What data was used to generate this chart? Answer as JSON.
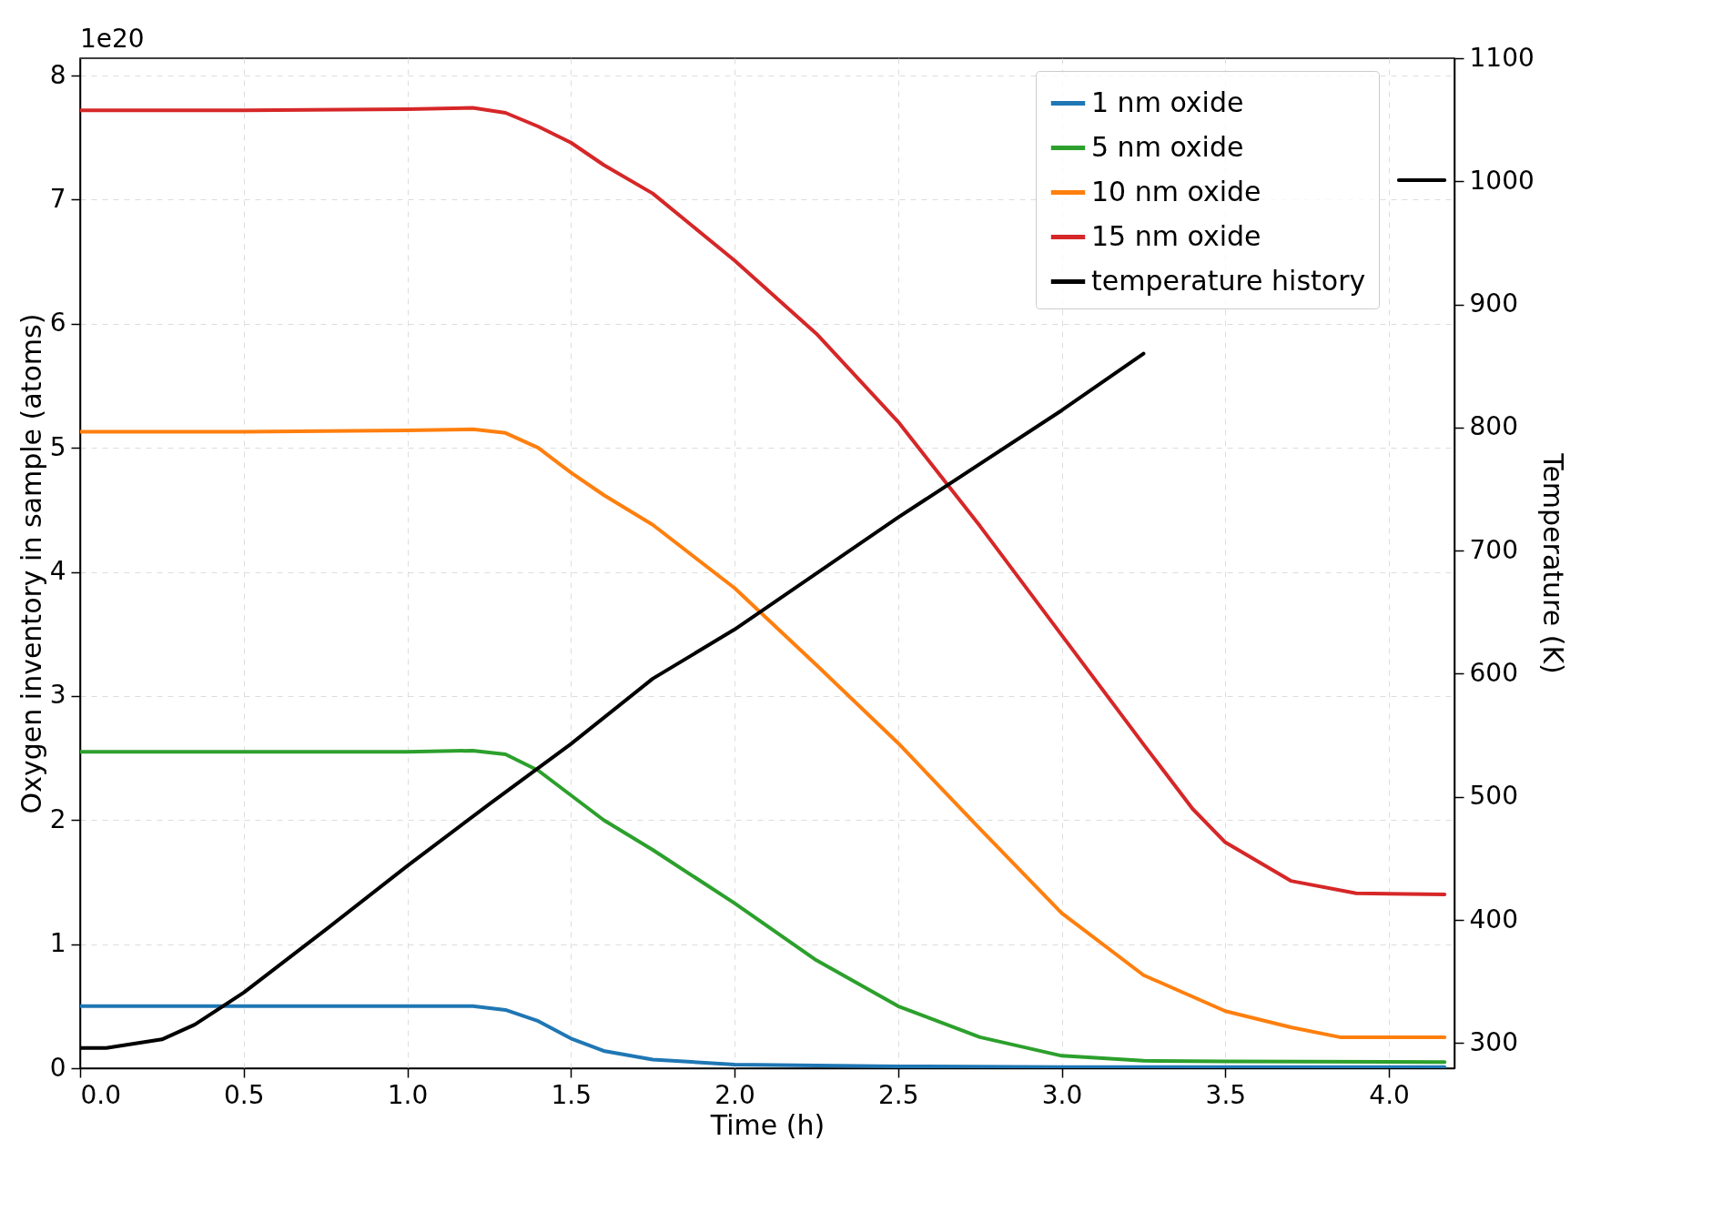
{
  "chart_data": {
    "type": "line",
    "xlabel": "Time (h)",
    "ylabel": "Oxygen inventory in sample (atoms)",
    "y2label": "Temperature (K)",
    "annotations": [
      "1e20"
    ],
    "xlim": [
      0,
      4.2
    ],
    "xticks": [
      {
        "value": 0,
        "label": "0.0"
      },
      {
        "value": 0.5,
        "label": "0.5"
      },
      {
        "value": 1,
        "label": "1.0"
      },
      {
        "value": 1.5,
        "label": "1.5"
      },
      {
        "value": 2,
        "label": "2.0"
      },
      {
        "value": 2.5,
        "label": "2.5"
      },
      {
        "value": 3,
        "label": "3.0"
      },
      {
        "value": 3.5,
        "label": "3.5"
      },
      {
        "value": 4,
        "label": "4.0"
      }
    ],
    "ylim": [
      0,
      8.14
    ],
    "yticks": [
      0,
      1,
      2,
      3,
      4,
      5,
      6,
      7,
      8
    ],
    "y2lim": [
      279.6,
      1100
    ],
    "y2ticks": [
      300,
      400,
      500,
      600,
      700,
      800,
      900,
      1000,
      1100
    ],
    "grid": true,
    "legend": "top right",
    "marker": "none",
    "line_style": "solid",
    "series": [
      {
        "name": "1 nm oxide",
        "color": "#1f77b4",
        "x": [
          0,
          0.5,
          1.0,
          1.2,
          1.3,
          1.4,
          1.5,
          1.6,
          1.75,
          2.0,
          2.5,
          3.0,
          3.5,
          4.17
        ],
        "values": [
          0.5,
          0.5,
          0.5,
          0.5,
          0.47,
          0.38,
          0.24,
          0.14,
          0.07,
          0.03,
          0.015,
          0.01,
          0.01,
          0.01
        ]
      },
      {
        "name": "5 nm oxide",
        "color": "#2ca02c",
        "x": [
          0,
          0.5,
          1.0,
          1.2,
          1.3,
          1.4,
          1.5,
          1.6,
          1.75,
          2.0,
          2.25,
          2.5,
          2.75,
          3.0,
          3.25,
          3.5,
          4.17
        ],
        "values": [
          2.55,
          2.55,
          2.55,
          2.56,
          2.53,
          2.4,
          2.2,
          2.0,
          1.76,
          1.33,
          0.87,
          0.5,
          0.25,
          0.1,
          0.06,
          0.055,
          0.05
        ]
      },
      {
        "name": "10 nm oxide",
        "color": "#ff7f0e",
        "x": [
          0,
          0.5,
          1.0,
          1.2,
          1.3,
          1.4,
          1.5,
          1.6,
          1.75,
          2.0,
          2.25,
          2.5,
          2.75,
          3.0,
          3.25,
          3.5,
          3.7,
          3.85,
          4.17
        ],
        "values": [
          5.13,
          5.13,
          5.14,
          5.15,
          5.12,
          5.0,
          4.8,
          4.62,
          4.38,
          3.87,
          3.25,
          2.62,
          1.93,
          1.25,
          0.75,
          0.46,
          0.33,
          0.25,
          0.25
        ]
      },
      {
        "name": "15 nm oxide",
        "color": "#d62728",
        "x": [
          0,
          0.5,
          1.0,
          1.2,
          1.3,
          1.4,
          1.5,
          1.6,
          1.75,
          2.0,
          2.25,
          2.5,
          2.75,
          3.0,
          3.25,
          3.4,
          3.5,
          3.7,
          3.9,
          4.17
        ],
        "values": [
          7.72,
          7.72,
          7.73,
          7.74,
          7.7,
          7.59,
          7.46,
          7.28,
          7.05,
          6.51,
          5.92,
          5.21,
          4.37,
          3.49,
          2.61,
          2.09,
          1.82,
          1.51,
          1.41,
          1.4
        ]
      },
      {
        "name": "temperature history",
        "color": "#000000",
        "axis": "y2",
        "x": [
          0,
          0.08,
          0.25,
          0.35,
          0.5,
          0.75,
          1.0,
          1.25,
          1.5,
          1.75,
          2.0,
          2.5,
          3.0,
          3.25,
          3.5,
          4.0,
          4.03,
          4.17
        ],
        "values": [
          296,
          296,
          303,
          315,
          341,
          392,
          444,
          494,
          543,
          596,
          636,
          727,
          814,
          860,
          null,
          null,
          1001,
          1001
        ]
      }
    ]
  }
}
